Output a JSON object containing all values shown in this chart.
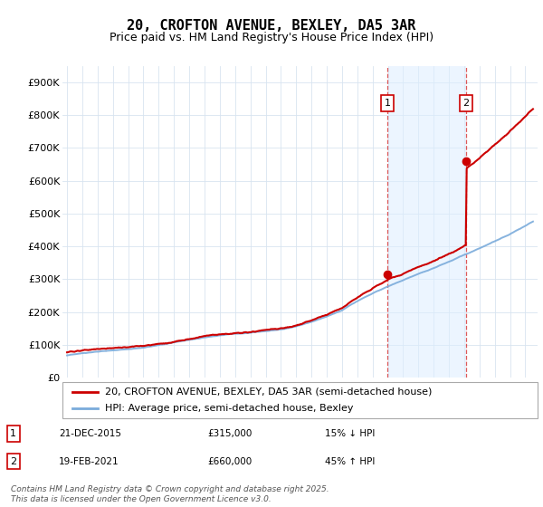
{
  "title": "20, CROFTON AVENUE, BEXLEY, DA5 3AR",
  "subtitle": "Price paid vs. HM Land Registry's House Price Index (HPI)",
  "ylim": [
    0,
    950000
  ],
  "yticks": [
    0,
    100000,
    200000,
    300000,
    400000,
    500000,
    600000,
    700000,
    800000,
    900000
  ],
  "ytick_labels": [
    "£0",
    "£100K",
    "£200K",
    "£300K",
    "£400K",
    "£500K",
    "£600K",
    "£700K",
    "£800K",
    "£900K"
  ],
  "background_color": "#ffffff",
  "plot_bg_color": "#ffffff",
  "grid_color": "#d8e4f0",
  "hpi_line_color": "#7aabdb",
  "price_line_color": "#cc0000",
  "shade_color": "#ddeeff",
  "t1": 2015.97,
  "p1": 315000,
  "t2": 2021.12,
  "p2": 660000,
  "annotation1": [
    "1",
    "21-DEC-2015",
    "£315,000",
    "15% ↓ HPI"
  ],
  "annotation2": [
    "2",
    "19-FEB-2021",
    "£660,000",
    "45% ↑ HPI"
  ],
  "legend1": "20, CROFTON AVENUE, BEXLEY, DA5 3AR (semi-detached house)",
  "legend2": "HPI: Average price, semi-detached house, Bexley",
  "footer": "Contains HM Land Registry data © Crown copyright and database right 2025.\nThis data is licensed under the Open Government Licence v3.0.",
  "title_fontsize": 11,
  "subtitle_fontsize": 9,
  "tick_fontsize": 8,
  "legend_fontsize": 8,
  "annotation_fontsize": 8,
  "footer_fontsize": 6.5
}
